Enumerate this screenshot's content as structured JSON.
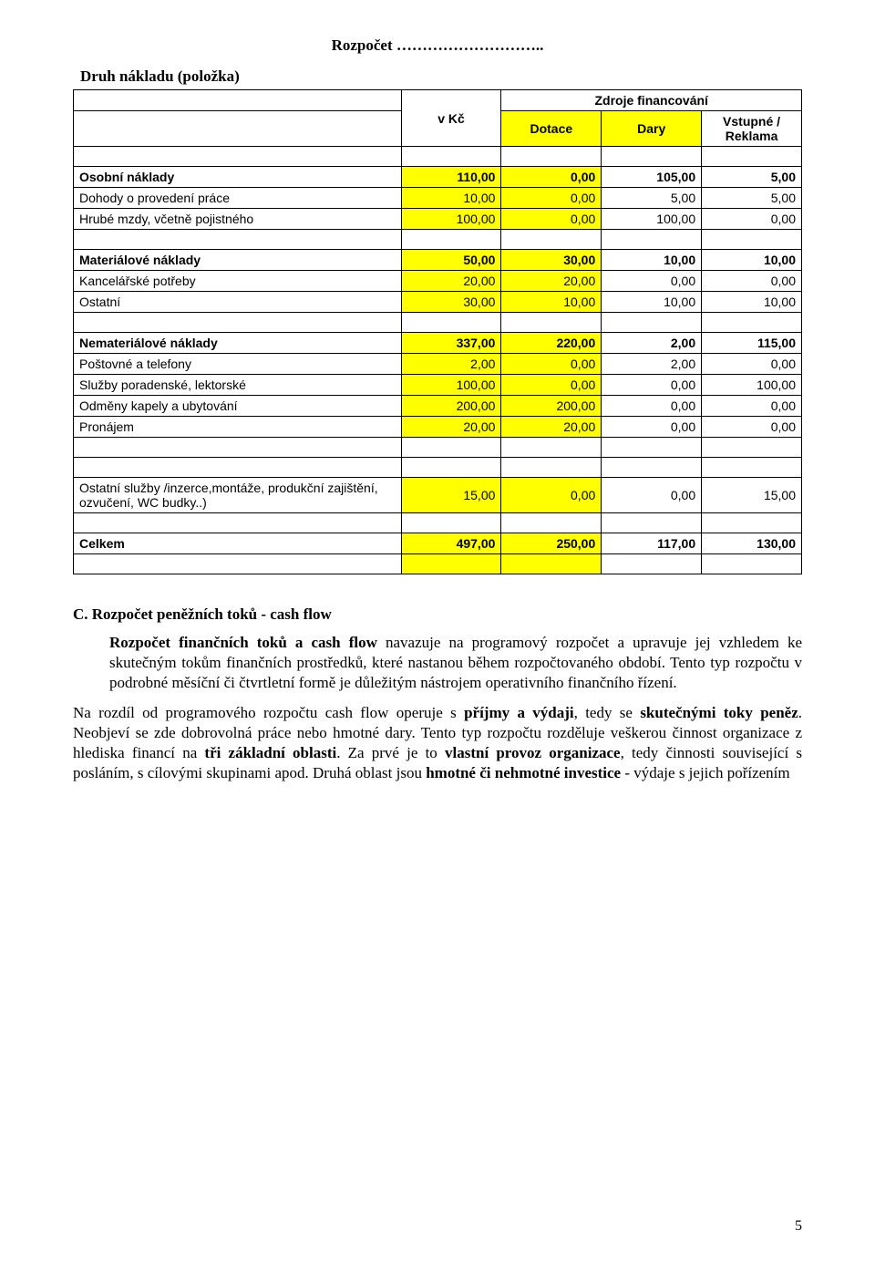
{
  "page_number": "5",
  "title_line": "Rozpočet ………………………..",
  "sub_line": "Druh nákladu (položka)",
  "table": {
    "bg_highlight": "#ffff00",
    "border_color": "#000000",
    "head": {
      "col0": "v Kč",
      "merged": "Zdroje financování",
      "c1": "Dotace",
      "c2": "Dary",
      "c3": "Vstupné / Reklama"
    },
    "rows": [
      {
        "label": "Osobní náklady",
        "v": [
          "110,00",
          "0,00",
          "105,00",
          "5,00"
        ],
        "strong": true,
        "hl": [
          true,
          true,
          false,
          false
        ]
      },
      {
        "label": "Dohody o provedení práce",
        "v": [
          "10,00",
          "0,00",
          "5,00",
          "5,00"
        ],
        "hl": [
          true,
          true,
          false,
          false
        ]
      },
      {
        "label": "Hrubé mzdy, včetně pojistného",
        "v": [
          "100,00",
          "0,00",
          "100,00",
          "0,00"
        ],
        "hl": [
          true,
          true,
          false,
          false
        ]
      },
      {
        "spacer": true
      },
      {
        "label": "Materiálové náklady",
        "v": [
          "50,00",
          "30,00",
          "10,00",
          "10,00"
        ],
        "strong": true,
        "hl": [
          true,
          true,
          false,
          false
        ]
      },
      {
        "label": "Kancelářské potřeby",
        "v": [
          "20,00",
          "20,00",
          "0,00",
          "0,00"
        ],
        "hl": [
          true,
          true,
          false,
          false
        ]
      },
      {
        "label": "Ostatní",
        "v": [
          "30,00",
          "10,00",
          "10,00",
          "10,00"
        ],
        "hl": [
          true,
          true,
          false,
          false
        ]
      },
      {
        "spacer": true
      },
      {
        "label": "Nemateriálové náklady",
        "v": [
          "337,00",
          "220,00",
          "2,00",
          "115,00"
        ],
        "strong": true,
        "hl": [
          true,
          true,
          false,
          false
        ]
      },
      {
        "label": "Poštovné a telefony",
        "v": [
          "2,00",
          "0,00",
          "2,00",
          "0,00"
        ],
        "hl": [
          true,
          true,
          false,
          false
        ]
      },
      {
        "label": "Služby poradenské, lektorské",
        "v": [
          "100,00",
          "0,00",
          "0,00",
          "100,00"
        ],
        "hl": [
          true,
          true,
          false,
          false
        ]
      },
      {
        "label": "Odměny kapely a ubytování",
        "v": [
          "200,00",
          "200,00",
          "0,00",
          "0,00"
        ],
        "hl": [
          true,
          true,
          false,
          false
        ]
      },
      {
        "label": "Pronájem",
        "v": [
          "20,00",
          "20,00",
          "0,00",
          "0,00"
        ],
        "hl": [
          true,
          true,
          false,
          false
        ]
      },
      {
        "spacer": true
      },
      {
        "spacer": true
      },
      {
        "label": "Ostatní služby /inzerce,montáže, produkční zajištění, ozvučení, WC budky..)",
        "v": [
          "15,00",
          "0,00",
          "0,00",
          "15,00"
        ],
        "hl": [
          true,
          true,
          false,
          false
        ],
        "tall": true
      },
      {
        "spacer": true
      },
      {
        "label": "Celkem",
        "v": [
          "497,00",
          "250,00",
          "117,00",
          "130,00"
        ],
        "strong": true,
        "hl": [
          true,
          true,
          false,
          false
        ]
      }
    ]
  },
  "section_c_head": "C. Rozpočet peněžních toků - cash flow",
  "para1_a": "Rozpočet finančních toků a cash flow",
  "para1_b": " navazuje na programový rozpočet a upravuje jej vzhledem ke skutečným tokům finančních prostředků, které nastanou během rozpočtovaného období. Tento typ rozpočtu v podrobné měsíční či čtvrtletní formě je důležitým nástrojem operativního finančního řízení.",
  "para2_a": "Na rozdíl od programového rozpočtu cash flow operuje s ",
  "para2_b": "příjmy a výdaji",
  "para2_c": ", tedy se ",
  "para2_d": "skutečnými toky peněz",
  "para2_e": ". Neobjeví se zde dobrovolná práce nebo hmotné dary. Tento typ rozpočtu rozděluje veškerou činnost organizace z hlediska financí na ",
  "para2_f": "tři základní oblasti",
  "para2_g": ". Za prvé je to ",
  "para2_h": "vlastní provoz organizace",
  "para2_i": ", tedy činnosti související s posláním, s cílovými skupinami apod. Druhá oblast jsou ",
  "para2_j": "hmotné či nehmotné investice",
  "para2_k": " - výdaje s jejich pořízením"
}
